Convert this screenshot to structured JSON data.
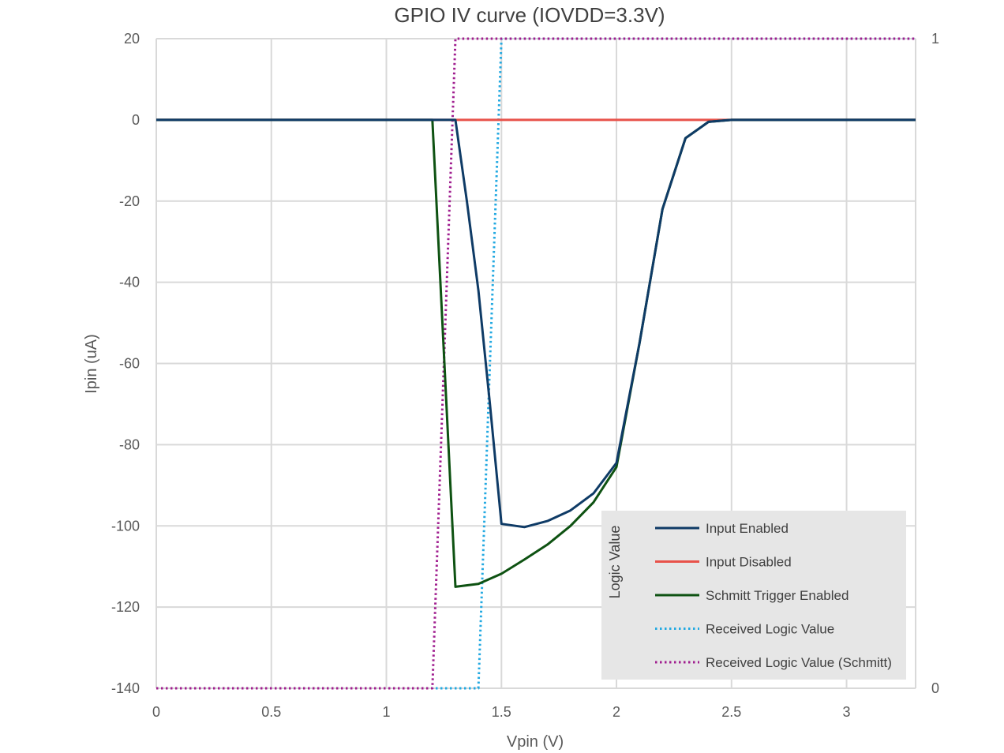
{
  "chart_data": {
    "type": "line",
    "title": "GPIO IV curve (IOVDD=3.3V)",
    "xlabel": "Vpin (V)",
    "ylabel": "Ipin (uA)",
    "y2label": "",
    "xlim": [
      0,
      3.3
    ],
    "ylim": [
      -140,
      20
    ],
    "y2lim": [
      0,
      1
    ],
    "x_ticks": [
      "0",
      "0.5",
      "1",
      "1.5",
      "2",
      "2.5",
      "3"
    ],
    "y_ticks": [
      "20",
      "0",
      "-20",
      "-40",
      "-60",
      "-80",
      "-100",
      "-120",
      "-140"
    ],
    "y2_ticks": [
      "1",
      "0"
    ],
    "grid": true,
    "legend_position": "bottom-right",
    "legend_title": "Logic Value",
    "series": [
      {
        "name": "Input Enabled",
        "color": "#0f3b66",
        "dash": "solid",
        "axis": "left",
        "x": [
          0,
          1.2,
          1.3,
          1.35,
          1.4,
          1.45,
          1.5,
          1.6,
          1.7,
          1.8,
          1.9,
          2.0,
          2.1,
          2.2,
          2.3,
          2.4,
          2.5,
          3.3
        ],
        "y": [
          0,
          0,
          0,
          -20,
          -42,
          -70,
          -99.5,
          -100.3,
          -98.8,
          -96.2,
          -92.0,
          -84.5,
          -55,
          -22,
          -4.5,
          -0.5,
          0,
          0
        ]
      },
      {
        "name": "Input Disabled",
        "color": "#e8524a",
        "dash": "solid",
        "axis": "left",
        "x": [
          0,
          3.3
        ],
        "y": [
          0,
          0
        ]
      },
      {
        "name": "Schmitt Trigger Enabled",
        "color": "#0e5212",
        "dash": "solid",
        "axis": "left",
        "x": [
          0,
          1.2,
          1.3,
          1.4,
          1.5,
          1.6,
          1.7,
          1.8,
          1.9,
          2.0,
          2.1,
          2.2,
          2.3,
          2.4,
          2.5,
          3.3
        ],
        "y": [
          0,
          0,
          -115,
          -114.3,
          -111.8,
          -108.3,
          -104.6,
          -100.0,
          -94.2,
          -85.5,
          -55,
          -22,
          -4.5,
          -0.5,
          0,
          0
        ]
      },
      {
        "name": "Received Logic Value",
        "color": "#23a9e1",
        "dash": "dotted",
        "axis": "right",
        "x": [
          0,
          1.4,
          1.5,
          3.3
        ],
        "y": [
          0,
          0,
          1,
          1
        ]
      },
      {
        "name": "Received Logic Value (Schmitt)",
        "color": "#a01e8f",
        "dash": "dotted",
        "axis": "right",
        "x": [
          0,
          1.2,
          1.3,
          3.3
        ],
        "y": [
          0,
          0,
          1,
          1
        ]
      }
    ]
  }
}
